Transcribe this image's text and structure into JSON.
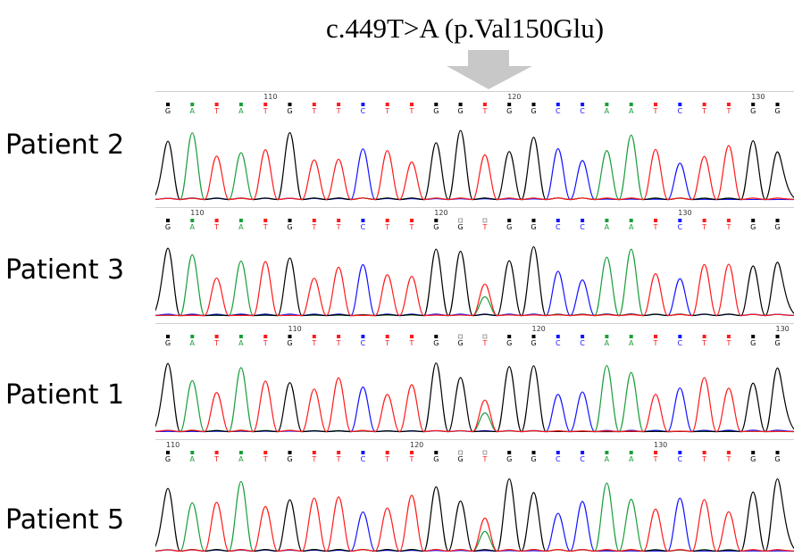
{
  "title": "c.449T>A (p.Val150Glu)",
  "colors": {
    "A": "#1a9e3c",
    "C": "#1414ff",
    "G": "#000000",
    "T": "#ff1a1a",
    "arrow": "#c8c8c8"
  },
  "sequence": [
    "G",
    "A",
    "T",
    "A",
    "T",
    "G",
    "T",
    "T",
    "C",
    "T",
    "T",
    "G",
    "G",
    "T",
    "G",
    "G",
    "C",
    "C",
    "A",
    "A",
    "T",
    "C",
    "T",
    "T",
    "G",
    "G"
  ],
  "mutation_index": 13,
  "panels": [
    {
      "label": "Patient 2",
      "ticks": [
        {
          "pos": 4,
          "text": "110"
        },
        {
          "pos": 14,
          "text": "120"
        },
        {
          "pos": 24,
          "text": "130"
        }
      ],
      "secondary": false
    },
    {
      "label": "Patient 3",
      "ticks": [
        {
          "pos": 1,
          "text": "110"
        },
        {
          "pos": 11,
          "text": "120"
        },
        {
          "pos": 21,
          "text": "130"
        }
      ],
      "secondary": true
    },
    {
      "label": "Patient 1",
      "ticks": [
        {
          "pos": 5,
          "text": "110"
        },
        {
          "pos": 15,
          "text": "120"
        },
        {
          "pos": 25,
          "text": "130"
        }
      ],
      "secondary": true
    },
    {
      "label": "Patient 5",
      "ticks": [
        {
          "pos": 0,
          "text": "110"
        },
        {
          "pos": 10,
          "text": "120"
        },
        {
          "pos": 20,
          "text": "130"
        }
      ],
      "secondary": true
    }
  ]
}
